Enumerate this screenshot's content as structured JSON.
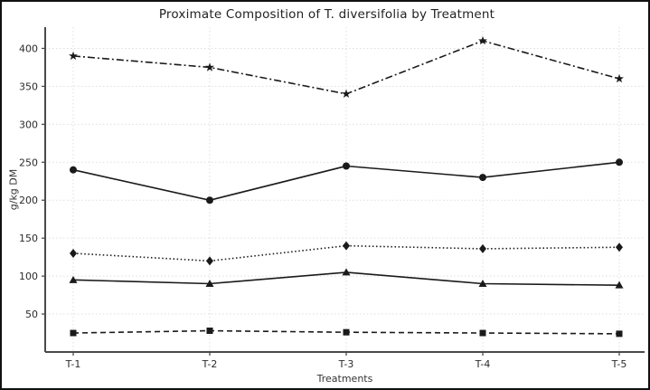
{
  "chart_data": {
    "type": "line",
    "title": "Proximate Composition of T. diversifolia by Treatment",
    "xlabel": "Treatments",
    "ylabel": "g/kg DM",
    "categories": [
      "T-1",
      "T-2",
      "T-3",
      "T-4",
      "T-5"
    ],
    "y_ticks": [
      50,
      100,
      150,
      200,
      250,
      300,
      350,
      400
    ],
    "ylim": [
      0,
      428
    ],
    "grid": "dotted-light",
    "legend": "none",
    "line_color": "#1a1a1a",
    "series": [
      {
        "name": "dashdot-star-series",
        "linestyle": "dashdot",
        "marker": "star",
        "values": [
          390,
          375,
          340,
          410,
          360
        ]
      },
      {
        "name": "solid-circle-series",
        "linestyle": "solid",
        "marker": "circle",
        "values": [
          240,
          200,
          245,
          230,
          250
        ]
      },
      {
        "name": "dotted-diamond-series",
        "linestyle": "dotted",
        "marker": "diamond",
        "values": [
          130,
          120,
          140,
          136,
          138
        ]
      },
      {
        "name": "solid-triangle-series",
        "linestyle": "solid",
        "marker": "triangle",
        "values": [
          95,
          90,
          105,
          90,
          88
        ]
      },
      {
        "name": "dashed-square-series",
        "linestyle": "dashed",
        "marker": "square",
        "values": [
          25,
          28,
          26,
          25,
          24
        ]
      }
    ]
  },
  "colors": {
    "grid": "#dedede",
    "spine": "#4a4a4a",
    "text": "#2b2b2b"
  }
}
